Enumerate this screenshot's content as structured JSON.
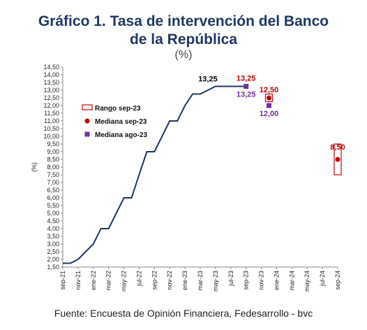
{
  "header": {
    "title_line1": "Gráfico 1. Tasa de intervención del Banco",
    "title_line2": "de la República",
    "unit": "(%)"
  },
  "footer": {
    "source": "Fuente: Encuesta de Opinión Financiera, Fedesarrollo - bvc"
  },
  "colors": {
    "line": "#1f3864",
    "range_box": "#cc0000",
    "median_sep": "#c00000",
    "median_ago": "#7030a0",
    "label_line": "#000000",
    "label_ago": "#7030a0",
    "label_sep": "#c00000"
  },
  "chart_data": {
    "type": "line",
    "ylabel": "(%)",
    "ylim": [
      1.5,
      14.5
    ],
    "ytick_step": 0.5,
    "x_ticks": [
      "sep-21",
      "nov-21",
      "ene-22",
      "mar-22",
      "may-22",
      "jul-22",
      "sep-22",
      "nov-22",
      "ene-23",
      "mar-23",
      "may-23",
      "jul-23",
      "sep-23",
      "nov-23",
      "ene-24",
      "mar-24",
      "may-24",
      "jul-24",
      "sep-24"
    ],
    "series": [
      {
        "x": [
          "sep-21",
          "oct-21",
          "nov-21",
          "dic-21",
          "ene-22",
          "feb-22",
          "mar-22",
          "abr-22",
          "may-22",
          "jun-22",
          "jul-22",
          "ago-22",
          "sep-22",
          "oct-22",
          "nov-22",
          "dic-22",
          "ene-23",
          "feb-23",
          "mar-23",
          "abr-23",
          "may-23",
          "jun-23",
          "jul-23",
          "ago-23",
          "sep-23"
        ],
        "values": [
          1.75,
          1.75,
          2.0,
          2.5,
          3.0,
          4.0,
          4.0,
          5.0,
          6.0,
          6.0,
          7.5,
          9.0,
          9.0,
          10.0,
          11.0,
          11.0,
          12.0,
          12.75,
          12.75,
          13.0,
          13.25,
          13.25,
          13.25,
          13.25,
          13.25
        ]
      }
    ],
    "labels": [
      {
        "text": "13,25",
        "x": "abr-23",
        "y": 13.25,
        "kind": "line"
      },
      {
        "text": "13,25",
        "x": "sep-23",
        "y": 13.25,
        "kind": "sep"
      },
      {
        "text": "13,25",
        "x": "sep-23",
        "y": 13.25,
        "kind": "ago"
      },
      {
        "text": "12,50",
        "x": "dic-23",
        "y": 12.5,
        "kind": "sep"
      },
      {
        "text": "12,00",
        "x": "dic-23",
        "y": 12.0,
        "kind": "ago"
      },
      {
        "text": "8,50",
        "x": "sep-24",
        "y": 8.5,
        "kind": "sep"
      }
    ],
    "range_sep_23": [
      {
        "x": "dic-23",
        "low": 12.25,
        "high": 12.75
      },
      {
        "x": "sep-24",
        "low": 7.5,
        "high": 9.5
      }
    ],
    "median_sep_23": [
      {
        "x": "dic-23",
        "value": 12.5
      },
      {
        "x": "sep-24",
        "value": 8.5
      }
    ],
    "median_ago_23": [
      {
        "x": "sep-23",
        "value": 13.25
      },
      {
        "x": "dic-23",
        "value": 12.0
      }
    ],
    "legend": {
      "placement": "left",
      "items": [
        {
          "label": "Rango sep-23",
          "marker": "box"
        },
        {
          "label": "Mediana sep-23",
          "marker": "circle"
        },
        {
          "label": "Mediana ago-23",
          "marker": "square"
        }
      ]
    }
  }
}
